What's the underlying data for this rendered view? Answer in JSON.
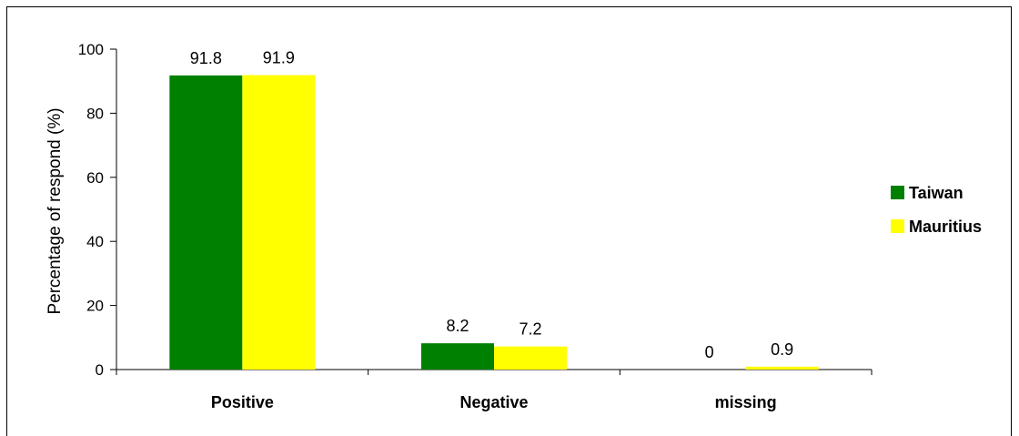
{
  "chart_data": {
    "type": "bar",
    "categories": [
      "Positive",
      "Negative",
      "missing"
    ],
    "series": [
      {
        "name": "Taiwan",
        "color": "#008000",
        "values": [
          91.8,
          8.2,
          0
        ],
        "labels": [
          "91.8",
          "8.2",
          "0"
        ]
      },
      {
        "name": "Mauritius",
        "color": "#FFFF00",
        "values": [
          91.9,
          7.2,
          0.9
        ],
        "labels": [
          "91.9",
          "7.2",
          "0.9"
        ]
      }
    ],
    "xlabel": "",
    "ylabel": "Percentage of respond (%)",
    "ylim": [
      0,
      100
    ],
    "yticks": [
      0,
      20,
      40,
      60,
      80,
      100
    ],
    "legend": "right",
    "grid": false
  }
}
